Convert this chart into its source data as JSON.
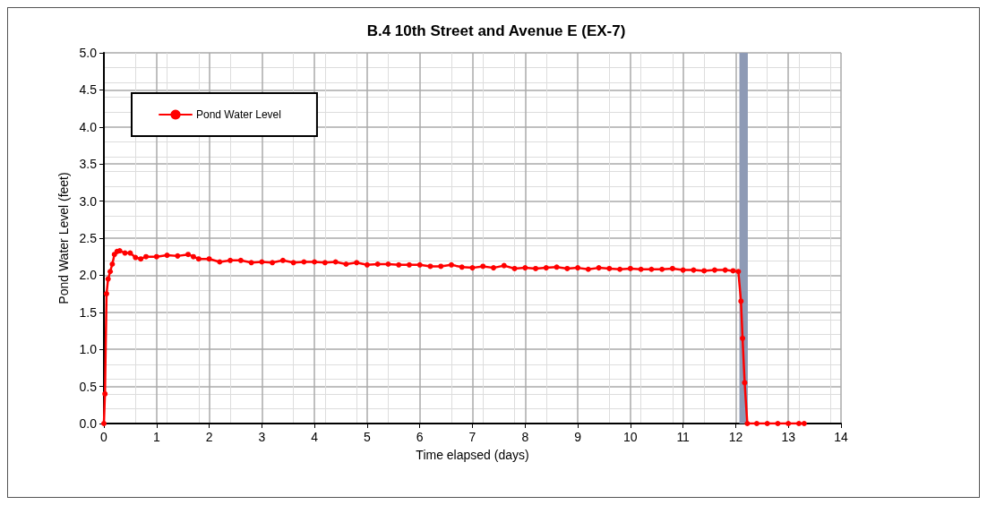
{
  "chart_data": {
    "type": "line",
    "title": "B.4 10th Street and Avenue E (EX-7)",
    "xlabel": "Time elapsed (days)",
    "ylabel": "Pond Water Level (feet)",
    "series": [
      {
        "name": "Pond Water Level",
        "color": "#ff0000",
        "x": [
          0,
          0.02,
          0.05,
          0.08,
          0.12,
          0.16,
          0.2,
          0.25,
          0.3,
          0.4,
          0.5,
          0.6,
          0.7,
          0.8,
          1.0,
          1.2,
          1.4,
          1.6,
          1.7,
          1.8,
          2.0,
          2.2,
          2.4,
          2.6,
          2.8,
          3.0,
          3.2,
          3.4,
          3.6,
          3.8,
          4.0,
          4.2,
          4.4,
          4.6,
          4.8,
          5.0,
          5.2,
          5.4,
          5.6,
          5.8,
          6.0,
          6.2,
          6.4,
          6.6,
          6.8,
          7.0,
          7.2,
          7.4,
          7.6,
          7.8,
          8.0,
          8.2,
          8.4,
          8.6,
          8.8,
          9.0,
          9.2,
          9.4,
          9.6,
          9.8,
          10.0,
          10.2,
          10.4,
          10.6,
          10.8,
          11.0,
          11.2,
          11.4,
          11.6,
          11.8,
          11.95,
          12.05,
          12.1,
          12.13,
          12.17,
          12.22,
          12.4,
          12.6,
          12.8,
          13.0,
          13.2,
          13.3
        ],
        "values": [
          0,
          0.4,
          1.75,
          1.95,
          2.05,
          2.15,
          2.28,
          2.32,
          2.33,
          2.3,
          2.3,
          2.24,
          2.22,
          2.25,
          2.25,
          2.27,
          2.26,
          2.28,
          2.25,
          2.22,
          2.22,
          2.18,
          2.2,
          2.2,
          2.17,
          2.18,
          2.17,
          2.2,
          2.17,
          2.18,
          2.18,
          2.17,
          2.18,
          2.15,
          2.17,
          2.14,
          2.15,
          2.15,
          2.14,
          2.14,
          2.14,
          2.12,
          2.12,
          2.14,
          2.11,
          2.1,
          2.12,
          2.1,
          2.13,
          2.09,
          2.1,
          2.09,
          2.1,
          2.11,
          2.09,
          2.1,
          2.08,
          2.1,
          2.09,
          2.08,
          2.09,
          2.08,
          2.08,
          2.08,
          2.09,
          2.07,
          2.07,
          2.06,
          2.07,
          2.07,
          2.06,
          2.05,
          1.65,
          1.15,
          0.55,
          0,
          0,
          0,
          0,
          0,
          0,
          0
        ]
      }
    ],
    "xlim": [
      0,
      14
    ],
    "xticks": [
      0,
      1,
      2,
      3,
      4,
      5,
      6,
      7,
      8,
      9,
      10,
      11,
      12,
      13,
      14
    ],
    "ylim": [
      0,
      5
    ],
    "yticks": [
      {
        "value": 0,
        "label": "0.0"
      },
      {
        "value": 0.5,
        "label": "0.5"
      },
      {
        "value": 1,
        "label": "1.0"
      },
      {
        "value": 1.5,
        "label": "1.5"
      },
      {
        "value": 2,
        "label": "2.0"
      },
      {
        "value": 2.5,
        "label": "2.5"
      },
      {
        "value": 3,
        "label": "3.0"
      },
      {
        "value": 3.5,
        "label": "3.5"
      },
      {
        "value": 4,
        "label": "4.0"
      },
      {
        "value": 4.5,
        "label": "4.5"
      },
      {
        "value": 5,
        "label": "5.0"
      }
    ],
    "bands": [
      {
        "axis": "x",
        "from": 12.07,
        "to": 12.23,
        "color": "#8e9ab5"
      }
    ],
    "grid": true,
    "legend": "top left",
    "marker": "circle",
    "line_style": "solid"
  }
}
